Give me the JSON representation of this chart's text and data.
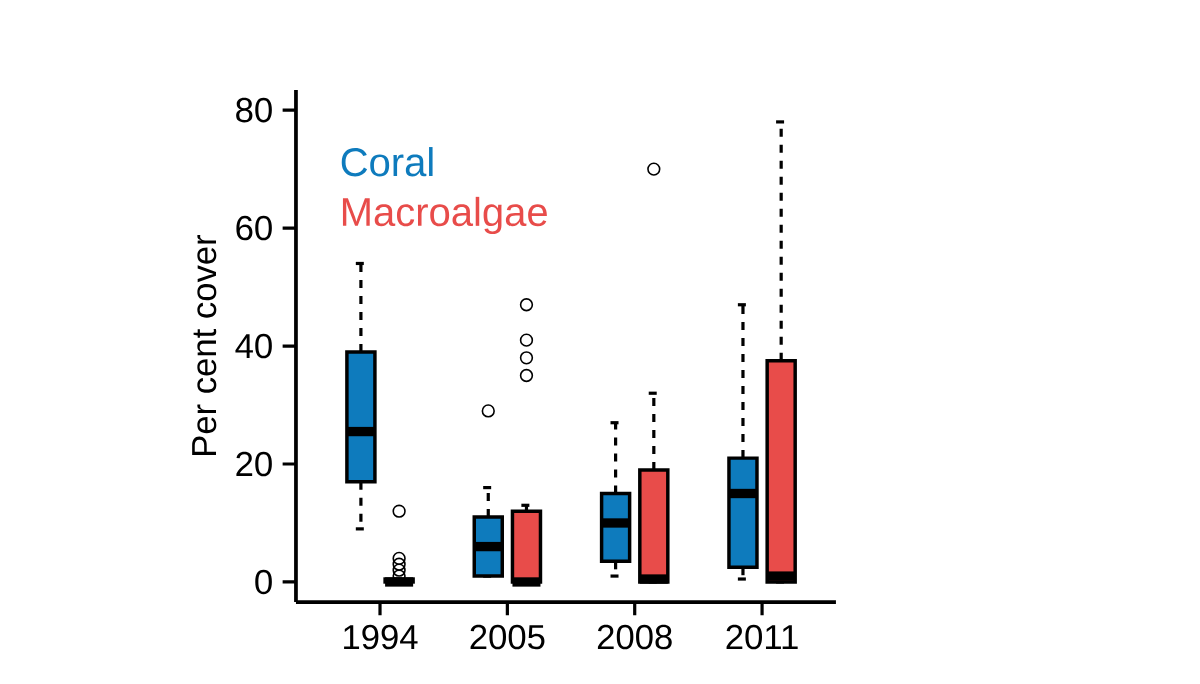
{
  "chart_data": {
    "type": "box",
    "ylabel": "Per cent cover",
    "categories": [
      "1994",
      "2005",
      "2008",
      "2011"
    ],
    "ylim": [
      -3.4,
      83.4
    ],
    "yticks": [
      0,
      20,
      40,
      60,
      80
    ],
    "line_style": "dashed",
    "series": [
      {
        "name": "Coral",
        "color": "#0e7bbd",
        "boxes": [
          {
            "low": 9,
            "q1": 17,
            "median": 25.5,
            "q3": 39,
            "high": 54
          },
          {
            "low": 1,
            "q1": 1,
            "median": 6,
            "q3": 11,
            "high": 16,
            "outliers": [
              29
            ]
          },
          {
            "low": 1,
            "q1": 3.5,
            "median": 10,
            "q3": 15,
            "high": 27
          },
          {
            "low": 0.5,
            "q1": 2.5,
            "median": 15,
            "q3": 21,
            "high": 47
          }
        ]
      },
      {
        "name": "Macroalgae",
        "color": "#e84c4a",
        "boxes": [
          {
            "low": 0,
            "q1": 0,
            "median": 0,
            "q3": 0.5,
            "high": 0.5,
            "outliers": [
              1,
              2,
              3,
              4,
              12
            ]
          },
          {
            "low": 0,
            "q1": 0,
            "median": 0,
            "q3": 12,
            "high": 13,
            "outliers": [
              35,
              38,
              41,
              47
            ]
          },
          {
            "low": 0,
            "q1": 0,
            "median": 0.5,
            "q3": 19,
            "high": 32,
            "outliers": [
              70
            ]
          },
          {
            "low": 0,
            "q1": 0,
            "median": 1,
            "q3": 37.5,
            "high": 78
          }
        ]
      }
    ]
  }
}
